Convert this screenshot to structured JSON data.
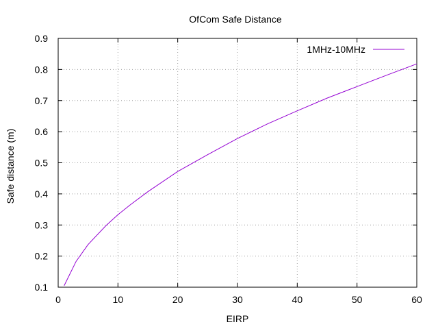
{
  "chart_data": {
    "type": "line",
    "title": "OfCom Safe Distance",
    "xlabel": "EIRP",
    "ylabel": "Safe distance (m)",
    "xlim": [
      0,
      60
    ],
    "ylim": [
      0.1,
      0.9
    ],
    "xticks": [
      0,
      10,
      20,
      30,
      40,
      50,
      60
    ],
    "yticks": [
      0.1,
      0.2,
      0.3,
      0.4,
      0.5,
      0.6,
      0.7,
      0.8,
      0.9
    ],
    "xtick_labels": [
      "0",
      "10",
      "20",
      "30",
      "40",
      "50",
      "60"
    ],
    "ytick_labels": [
      "0.1",
      "0.2",
      "0.3",
      "0.4",
      "0.5",
      "0.6",
      "0.7",
      "0.8",
      "0.9"
    ],
    "grid": true,
    "legend_position": "top-right",
    "series": [
      {
        "name": "1MHz-10MHz",
        "color": "#9400d3",
        "x": [
          1,
          3,
          5,
          8,
          10,
          12,
          15,
          20,
          25,
          30,
          35,
          40,
          45,
          50,
          55,
          60
        ],
        "y": [
          0.105,
          0.183,
          0.237,
          0.298,
          0.333,
          0.364,
          0.407,
          0.472,
          0.526,
          0.578,
          0.625,
          0.667,
          0.708,
          0.745,
          0.782,
          0.818
        ]
      }
    ]
  }
}
